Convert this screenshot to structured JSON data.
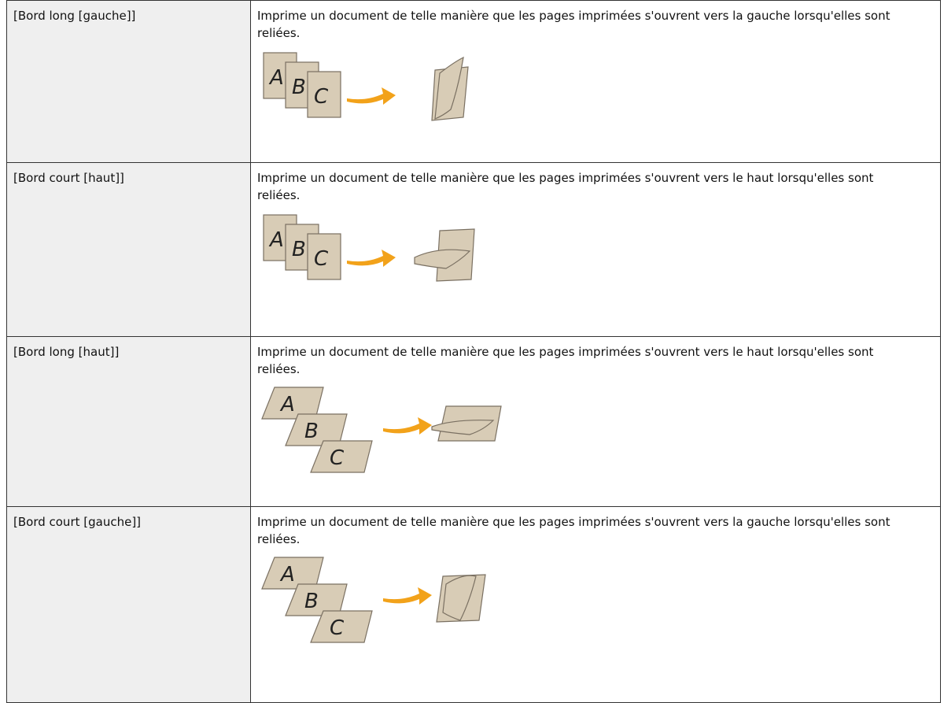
{
  "table": {
    "rows": [
      {
        "option": "[Bord long [gauche]]",
        "description": "Imprime un document de telle manière que les pages imprimées s'ouvrent vers la gauche lorsqu'elles sont reliées.",
        "illustration": [
          "A",
          "B",
          "C"
        ]
      },
      {
        "option": "[Bord court [haut]]",
        "description": "Imprime un document de telle manière que les pages imprimées s'ouvrent vers le haut lorsqu'elles sont reliées.",
        "illustration": [
          "A",
          "B",
          "C"
        ]
      },
      {
        "option": "[Bord long [haut]]",
        "description": "Imprime un document de telle manière que les pages imprimées s'ouvrent vers le haut lorsqu'elles sont reliées.",
        "illustration": [
          "A",
          "B",
          "C"
        ]
      },
      {
        "option": "[Bord court [gauche]]",
        "description": "Imprime un document de telle manière que les pages imprimées s'ouvrent vers la gauche lorsqu'elles sont reliées.",
        "illustration": [
          "A",
          "B",
          "C"
        ]
      }
    ]
  }
}
